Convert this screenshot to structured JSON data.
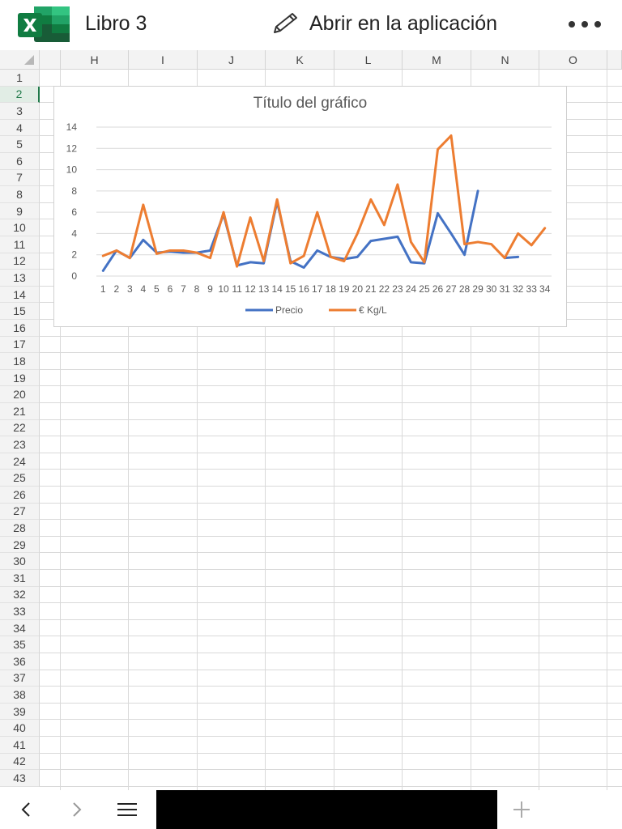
{
  "app": {
    "title": "Libro 3",
    "open_in_app_label": "Abrir en la aplicación",
    "brand_color": "#107C41"
  },
  "sheet": {
    "columns": [
      "H",
      "I",
      "J",
      "K",
      "L",
      "M",
      "N",
      "O"
    ],
    "rows": [
      "1",
      "2",
      "3",
      "4",
      "5",
      "6",
      "7",
      "8",
      "9",
      "10",
      "11",
      "12",
      "13",
      "14",
      "15",
      "16",
      "17",
      "18",
      "19",
      "20",
      "21",
      "22",
      "23",
      "24",
      "25",
      "26",
      "27",
      "28",
      "29",
      "30",
      "31",
      "32",
      "33",
      "34",
      "35",
      "36",
      "37",
      "38",
      "39",
      "40",
      "41",
      "42",
      "43"
    ],
    "selected_row": "2"
  },
  "chart_data": {
    "type": "line",
    "title": "Título del gráfico",
    "x": [
      1,
      2,
      3,
      4,
      5,
      6,
      7,
      8,
      9,
      10,
      11,
      12,
      13,
      14,
      15,
      16,
      17,
      18,
      19,
      20,
      21,
      22,
      23,
      24,
      25,
      26,
      27,
      28,
      29,
      30,
      31,
      32,
      33,
      34
    ],
    "ylim": [
      0,
      14
    ],
    "yticks": [
      0,
      2,
      4,
      6,
      8,
      10,
      12,
      14
    ],
    "grid": true,
    "legend_position": "bottom",
    "series": [
      {
        "name": "Precio",
        "color": "#4472C4",
        "values": [
          0.5,
          2.4,
          1.7,
          3.4,
          2.2,
          2.3,
          2.2,
          2.2,
          2.4,
          5.8,
          1.0,
          1.3,
          1.2,
          7.0,
          1.4,
          0.8,
          2.4,
          1.8,
          1.6,
          1.8,
          3.3,
          3.5,
          3.7,
          1.3,
          1.2,
          5.9,
          4.0,
          2.0,
          8.0,
          null,
          1.7,
          1.8,
          null,
          null
        ]
      },
      {
        "name": "€ Kg/L",
        "color": "#ED7D31",
        "values": [
          1.9,
          2.4,
          1.7,
          6.7,
          2.1,
          2.4,
          2.4,
          2.2,
          1.7,
          6.0,
          0.9,
          5.5,
          1.4,
          7.2,
          1.2,
          1.9,
          6.0,
          1.8,
          1.4,
          4.0,
          7.2,
          4.8,
          8.6,
          3.2,
          1.3,
          11.9,
          13.2,
          3.0,
          3.2,
          3.0,
          1.7,
          4.0,
          2.9,
          4.5
        ]
      }
    ]
  },
  "bottom": {
    "back_icon": "chevron-left-icon",
    "forward_icon": "chevron-right-icon",
    "sheets_icon": "hamburger-icon",
    "add_icon": "plus-icon"
  }
}
